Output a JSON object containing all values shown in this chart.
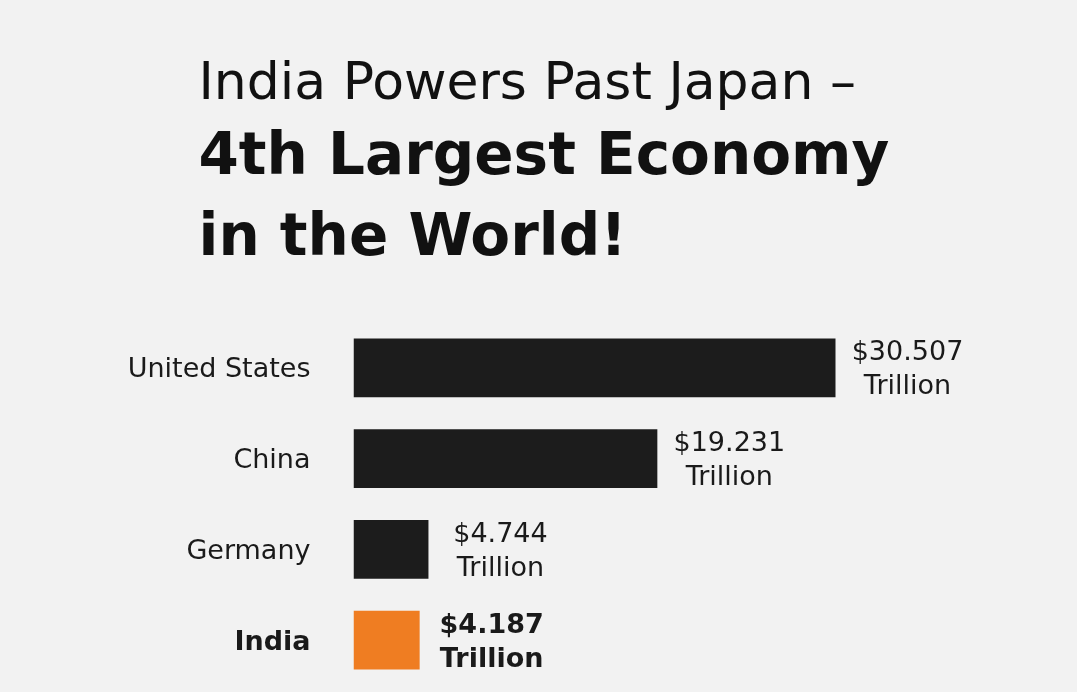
{
  "chart_data": {
    "type": "bar",
    "orientation": "horizontal",
    "title": "India Powers Past Japan –",
    "subtitle": "4th Largest Economy in the World!",
    "categories": [
      "United States",
      "China",
      "Germany",
      "India"
    ],
    "values": [
      30.507,
      19.231,
      4.744,
      4.187
    ],
    "colors": [
      "#1c1c1c",
      "#1c1c1c",
      "#1c1c1c",
      "#ef7d22"
    ],
    "value_labels": [
      "$30.507 Trillion",
      "$19.231 Trillion",
      "$4.744 Trillion",
      "$4.187 Trillion"
    ],
    "tick_labels": "y"
  }
}
